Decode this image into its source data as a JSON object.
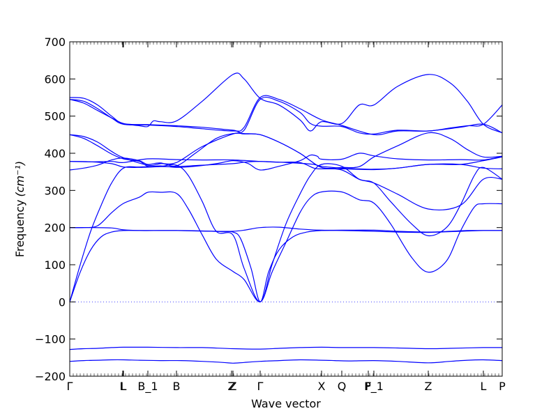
{
  "chart_data": {
    "type": "line",
    "title": "",
    "xlabel": "Wave vector",
    "ylabel": "Frequency",
    "ylabel_unit": "(cm⁻¹)",
    "ylim": [
      -200,
      700
    ],
    "yticks": [
      -200,
      -100,
      0,
      100,
      200,
      300,
      400,
      500,
      600,
      700
    ],
    "xlim": [
      0,
      620
    ],
    "xticks": [
      {
        "label": "Γ",
        "x": 0
      },
      {
        "label": "L",
        "x": 76
      },
      {
        "label": "L",
        "x": 77
      },
      {
        "label": "B_1",
        "x": 112
      },
      {
        "label": "B",
        "x": 153
      },
      {
        "label": "Z",
        "x": 232
      },
      {
        "label": "Z",
        "x": 234
      },
      {
        "label": "Γ",
        "x": 273
      },
      {
        "label": "X",
        "x": 361
      },
      {
        "label": "Q",
        "x": 390
      },
      {
        "label": "F",
        "x": 428
      },
      {
        "label": "P_1",
        "x": 436
      },
      {
        "label": "Z",
        "x": 514
      },
      {
        "label": "L",
        "x": 593
      },
      {
        "label": "P",
        "x": 620
      }
    ],
    "zero_line": {
      "y": 0,
      "style": "dotted"
    },
    "series_color": "#0000ff",
    "series": [
      {
        "x": [
          0,
          20,
          40,
          60,
          77,
          100,
          130,
          160,
          190,
          220,
          234,
          250,
          273,
          300,
          330,
          361,
          380,
          400,
          436,
          470,
          514,
          545,
          570,
          593,
          620
        ],
        "y": [
          -160,
          -158,
          -157,
          -156,
          -156,
          -157,
          -158,
          -158,
          -160,
          -163,
          -165,
          -163,
          -160,
          -158,
          -156,
          -157,
          -158,
          -159,
          -158,
          -160,
          -164,
          -160,
          -157,
          -156,
          -158
        ]
      },
      {
        "x": [
          0,
          20,
          40,
          60,
          77,
          112,
          153,
          190,
          234,
          273,
          300,
          330,
          361,
          390,
          436,
          470,
          514,
          545,
          593,
          620
        ],
        "y": [
          -128,
          -126,
          -125,
          -123,
          -122,
          -122,
          -123,
          -123,
          -126,
          -127,
          -125,
          -123,
          -122,
          -123,
          -123,
          -124,
          -126,
          -125,
          -123,
          -123
        ]
      },
      {
        "x": [
          0,
          15,
          30,
          45,
          60,
          77,
          100,
          130,
          160,
          190,
          220,
          234,
          245,
          260,
          273,
          285,
          300,
          320,
          340,
          361,
          390,
          436,
          470,
          500,
          514,
          530,
          560,
          593,
          620
        ],
        "y": [
          0,
          80,
          140,
          175,
          188,
          192,
          192,
          192,
          192,
          191,
          189,
          188,
          170,
          90,
          0,
          80,
          140,
          175,
          188,
          192,
          192,
          190,
          188,
          187,
          187,
          188,
          190,
          192,
          192
        ]
      },
      {
        "x": [
          0,
          15,
          30,
          45,
          60,
          77,
          100,
          130,
          153,
          170,
          190,
          210,
          234,
          250,
          273,
          290,
          310,
          330,
          345,
          361,
          390,
          415,
          436,
          460,
          490,
          514,
          540,
          560,
          580,
          593,
          620
        ],
        "y": [
          0,
          100,
          190,
          260,
          320,
          360,
          363,
          365,
          368,
          340,
          270,
          190,
          180,
          90,
          0,
          100,
          210,
          290,
          340,
          370,
          365,
          330,
          320,
          270,
          210,
          178,
          200,
          260,
          340,
          362,
          330
        ]
      },
      {
        "x": [
          0,
          20,
          40,
          60,
          77,
          100,
          112,
          130,
          153,
          170,
          190,
          210,
          234,
          250,
          273,
          290,
          310,
          330,
          345,
          361,
          390,
          415,
          436,
          460,
          490,
          514,
          540,
          560,
          580,
          593,
          620
        ],
        "y": [
          200,
          200,
          205,
          240,
          265,
          282,
          295,
          295,
          292,
          250,
          180,
          115,
          82,
          60,
          0,
          80,
          160,
          240,
          280,
          296,
          296,
          275,
          266,
          210,
          120,
          80,
          110,
          190,
          255,
          264,
          264
        ]
      },
      {
        "x": [
          0,
          30,
          60,
          77,
          100,
          130,
          153,
          180,
          210,
          234,
          250,
          273,
          300,
          330,
          361,
          390,
          436,
          470,
          514,
          545,
          570,
          593,
          620
        ],
        "y": [
          200,
          200,
          199,
          194,
          192,
          192,
          192,
          191,
          190,
          190,
          193,
          200,
          201,
          196,
          193,
          193,
          193,
          190,
          188,
          190,
          192,
          192,
          192
        ]
      },
      {
        "x": [
          0,
          20,
          40,
          60,
          77,
          100,
          112,
          130,
          153,
          180,
          210,
          234,
          250,
          273,
          300,
          330,
          361,
          390,
          415,
          436,
          470,
          514,
          545,
          570,
          593,
          620
        ],
        "y": [
          355,
          360,
          368,
          382,
          387,
          380,
          370,
          374,
          366,
          400,
          440,
          453,
          453,
          450,
          430,
          400,
          362,
          362,
          364,
          390,
          420,
          455,
          440,
          410,
          390,
          392
        ]
      },
      {
        "x": [
          0,
          30,
          60,
          77,
          100,
          130,
          153,
          190,
          234,
          250,
          273,
          300,
          330,
          350,
          361,
          390,
          415,
          436,
          470,
          514,
          560,
          593,
          620
        ],
        "y": [
          378,
          377,
          372,
          363,
          362,
          364,
          364,
          368,
          372,
          376,
          378,
          376,
          373,
          370,
          365,
          360,
          358,
          357,
          360,
          370,
          370,
          380,
          390
        ]
      },
      {
        "x": [
          0,
          30,
          60,
          77,
          112,
          153,
          190,
          234,
          273,
          300,
          330,
          350,
          361,
          390,
          436,
          470,
          514,
          560,
          593,
          620
        ],
        "y": [
          378,
          377,
          378,
          375,
          385,
          383,
          382,
          382,
          378,
          376,
          375,
          360,
          358,
          358,
          356,
          360,
          370,
          370,
          360,
          358
        ]
      },
      {
        "x": [
          0,
          20,
          40,
          60,
          77,
          100,
          112,
          130,
          153,
          180,
          210,
          234,
          255,
          273,
          300,
          330,
          345,
          355,
          361,
          390,
          415,
          436,
          470,
          514,
          560,
          593,
          620
        ],
        "y": [
          450,
          440,
          420,
          398,
          385,
          378,
          365,
          366,
          362,
          365,
          372,
          380,
          373,
          355,
          365,
          380,
          395,
          392,
          384,
          384,
          400,
          393,
          385,
          382,
          383,
          382,
          392
        ]
      },
      {
        "x": [
          0,
          20,
          40,
          60,
          77,
          112,
          130,
          153,
          190,
          234,
          250,
          273,
          300,
          330,
          345,
          361,
          390,
          415,
          436,
          470,
          514,
          560,
          593,
          620
        ],
        "y": [
          450,
          445,
          430,
          405,
          388,
          368,
          372,
          375,
          418,
          452,
          452,
          450,
          430,
          400,
          380,
          362,
          355,
          330,
          320,
          290,
          250,
          260,
          330,
          330
        ]
      },
      {
        "x": [
          0,
          20,
          40,
          60,
          77,
          100,
          112,
          120,
          130,
          153,
          190,
          234,
          250,
          273,
          300,
          330,
          345,
          361,
          390,
          415,
          436,
          470,
          514,
          545,
          570,
          593,
          620
        ],
        "y": [
          545,
          535,
          515,
          495,
          480,
          474,
          472,
          487,
          485,
          487,
          540,
          612,
          600,
          548,
          530,
          490,
          460,
          485,
          480,
          530,
          530,
          580,
          612,
          590,
          540,
          478,
          455
        ]
      },
      {
        "x": [
          0,
          20,
          40,
          60,
          77,
          112,
          153,
          190,
          234,
          250,
          273,
          300,
          330,
          345,
          361,
          390,
          415,
          436,
          470,
          514,
          545,
          570,
          593,
          620
        ],
        "y": [
          550,
          548,
          530,
          500,
          480,
          477,
          474,
          470,
          462,
          462,
          545,
          540,
          510,
          480,
          473,
          472,
          455,
          452,
          462,
          460,
          468,
          474,
          478,
          530
        ]
      },
      {
        "x": [
          0,
          20,
          40,
          60,
          77,
          112,
          153,
          190,
          234,
          250,
          273,
          300,
          330,
          361,
          390,
          436,
          470,
          514,
          560,
          593,
          620
        ],
        "y": [
          545,
          540,
          520,
          495,
          478,
          476,
          472,
          466,
          460,
          470,
          550,
          545,
          520,
          490,
          475,
          450,
          460,
          460,
          470,
          478,
          455
        ]
      }
    ]
  }
}
